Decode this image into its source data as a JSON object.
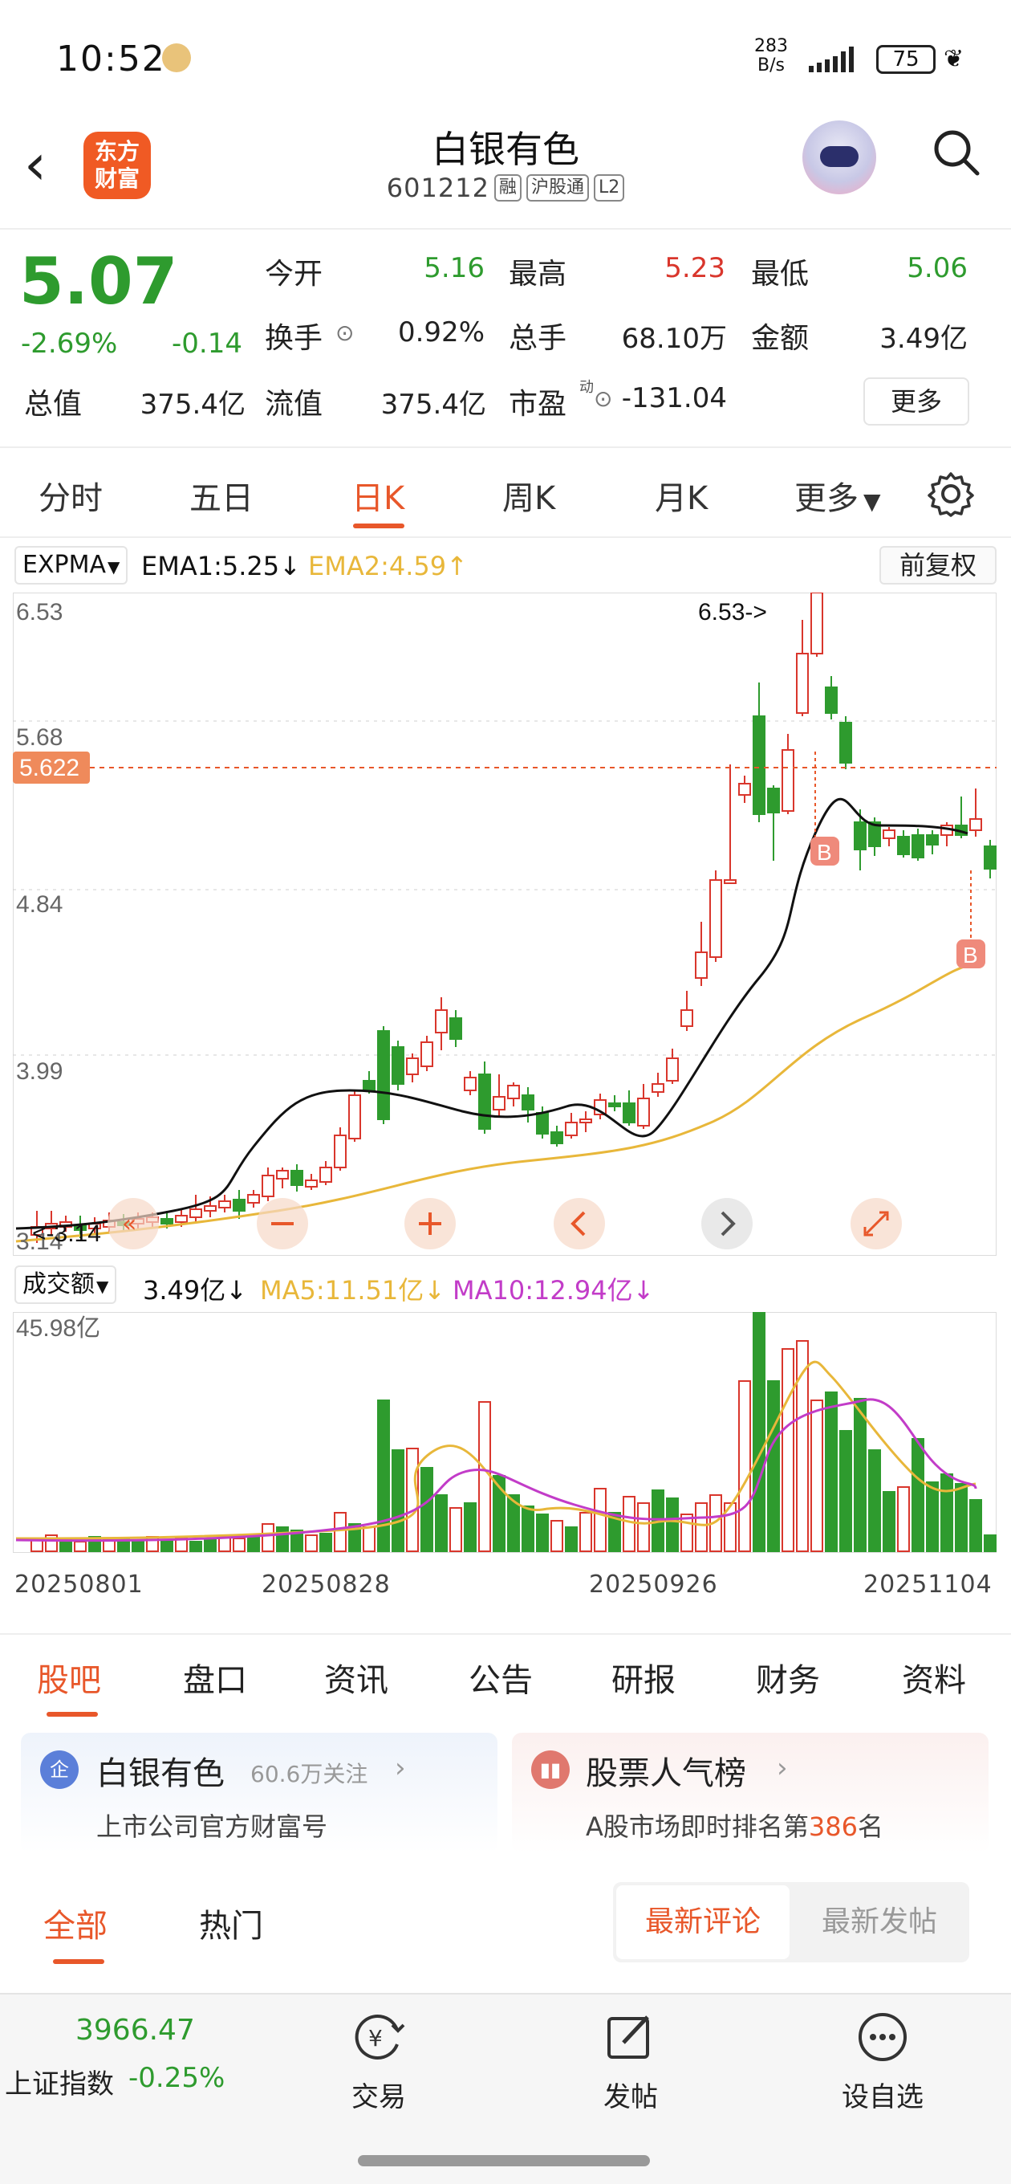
{
  "status_bar": {
    "time": "10:52",
    "net_speed_value": "283",
    "net_speed_unit": "B/s",
    "battery": "75",
    "notif_icon": "app-notification-icon",
    "signal_icon": "signal-bars-icon",
    "leaf_icon": "leaf-icon"
  },
  "header": {
    "logo_line1": "东方",
    "logo_line2": "财富",
    "stock_name": "白银有色",
    "stock_code": "601212",
    "tags": [
      "融",
      "沪股通",
      "L2"
    ],
    "back_icon": "chevron-left-icon",
    "assistant_icon": "robot-avatar-icon",
    "search_icon": "search-icon"
  },
  "quote": {
    "price": "5.07",
    "pct": "-2.69%",
    "chg": "-0.14",
    "open_label": "今开",
    "open_value": "5.16",
    "high_label": "最高",
    "high_value": "5.23",
    "low_label": "最低",
    "low_value": "5.06",
    "turnover_label": "换手",
    "turnover_value": "0.92%",
    "volume_label": "总手",
    "volume_value": "68.10万",
    "amount_label": "金额",
    "amount_value": "3.49亿",
    "mktcap_label": "总值",
    "mktcap_value": "375.4亿",
    "float_label": "流值",
    "float_value": "375.4亿",
    "pe_label": "市盈",
    "pe_sup": "动",
    "pe_value": "-131.04",
    "more_label": "更多",
    "colors": {
      "up": "#d9362c",
      "down": "#2e9b2e"
    }
  },
  "period_tabs": {
    "items": [
      "分时",
      "五日",
      "日K",
      "周K",
      "月K",
      "更多"
    ],
    "active": "日K",
    "settings_icon": "gear-icon",
    "more_icon": "caret-down-icon"
  },
  "indicator": {
    "selector": "EXPMA",
    "ema1": "EMA1:5.25",
    "ema1_arrow": "↓",
    "ema2": "EMA2:4.59",
    "ema2_arrow": "↑",
    "adjust_label": "前复权",
    "ema1_color": "#111111",
    "ema2_color": "#e8b73a"
  },
  "kline": {
    "y_labels": [
      "6.53",
      "5.68",
      "4.84",
      "3.99",
      "3.14"
    ],
    "current_price_tag": "5.622",
    "max_marker": "6.53->",
    "min_marker": "<-3.14",
    "buy_marker": "B",
    "controls": [
      "zoom-out-icon",
      "zoom-in-icon",
      "pan-left-icon",
      "pan-right-icon",
      "fullscreen-icon"
    ]
  },
  "volume": {
    "selector": "成交额",
    "value": "3.49亿",
    "value_arrow": "↓",
    "ma5": "MA5:11.51亿",
    "ma5_arrow": "↓",
    "ma10": "MA10:12.94亿",
    "ma10_arrow": "↓",
    "max_label": "45.98亿",
    "ma5_color": "#e8b73a",
    "ma10_color": "#c23cc8"
  },
  "dates": [
    "20250801",
    "20250828",
    "20250926",
    "20251104"
  ],
  "content_tabs": {
    "items": [
      "股吧",
      "盘口",
      "资讯",
      "公告",
      "研报",
      "财务",
      "资料"
    ],
    "active": "股吧"
  },
  "cards": {
    "company": {
      "icon_text": "企",
      "title": "白银有色",
      "follow": "60.6万关注",
      "sub": "上市公司官方财富号",
      "chevron_icon": "chevron-right-icon"
    },
    "rank": {
      "icon": "bar-chart-icon",
      "title": "股票人气榜",
      "sub_prefix": "A股市场即时排名第",
      "sub_rank": "386",
      "sub_suffix": "名",
      "chevron_icon": "chevron-right-icon"
    }
  },
  "feed_tabs": {
    "items": [
      "全部",
      "热门"
    ],
    "active": "全部",
    "sort_latest_comment": "最新评论",
    "sort_latest_post": "最新发帖"
  },
  "bottom_nav": {
    "index_value": "3966.47",
    "index_name": "上证指数",
    "index_change": "-0.25%",
    "items": [
      {
        "label": "交易",
        "icon": "trade-yuan-icon"
      },
      {
        "label": "发帖",
        "icon": "compose-icon"
      },
      {
        "label": "设自选",
        "icon": "more-dots-icon"
      }
    ]
  }
}
